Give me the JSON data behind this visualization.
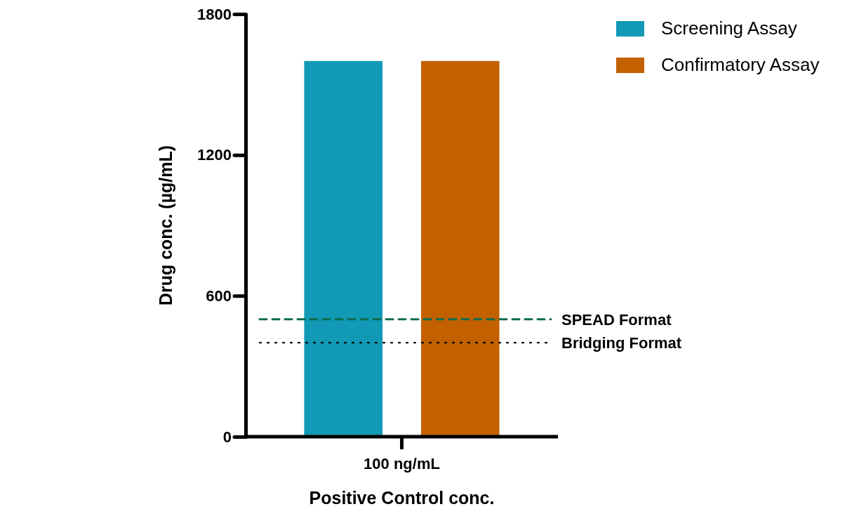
{
  "chart_data": {
    "type": "bar",
    "xlabel": "Positive Control conc.",
    "ylabel": "Drug conc. (µg/mL)",
    "categories": [
      "100 ng/mL"
    ],
    "series": [
      {
        "name": "Screening Assay",
        "color": "#1199b5",
        "values": [
          1600
        ]
      },
      {
        "name": "Confirmatory Assay",
        "color": "#c36100",
        "values": [
          1600
        ]
      }
    ],
    "ylim": [
      0,
      1800
    ],
    "yticks": [
      0,
      600,
      1200,
      1800
    ],
    "ref_lines": [
      {
        "axis": "y",
        "value": 500,
        "label": "SPEAD Format",
        "color": "#0b6b4c",
        "line_style": "dashed"
      },
      {
        "axis": "y",
        "value": 400,
        "label": "Bridging Format",
        "color": "#000000",
        "line_style": "dotted"
      }
    ],
    "grid": false,
    "legend": "top right"
  }
}
